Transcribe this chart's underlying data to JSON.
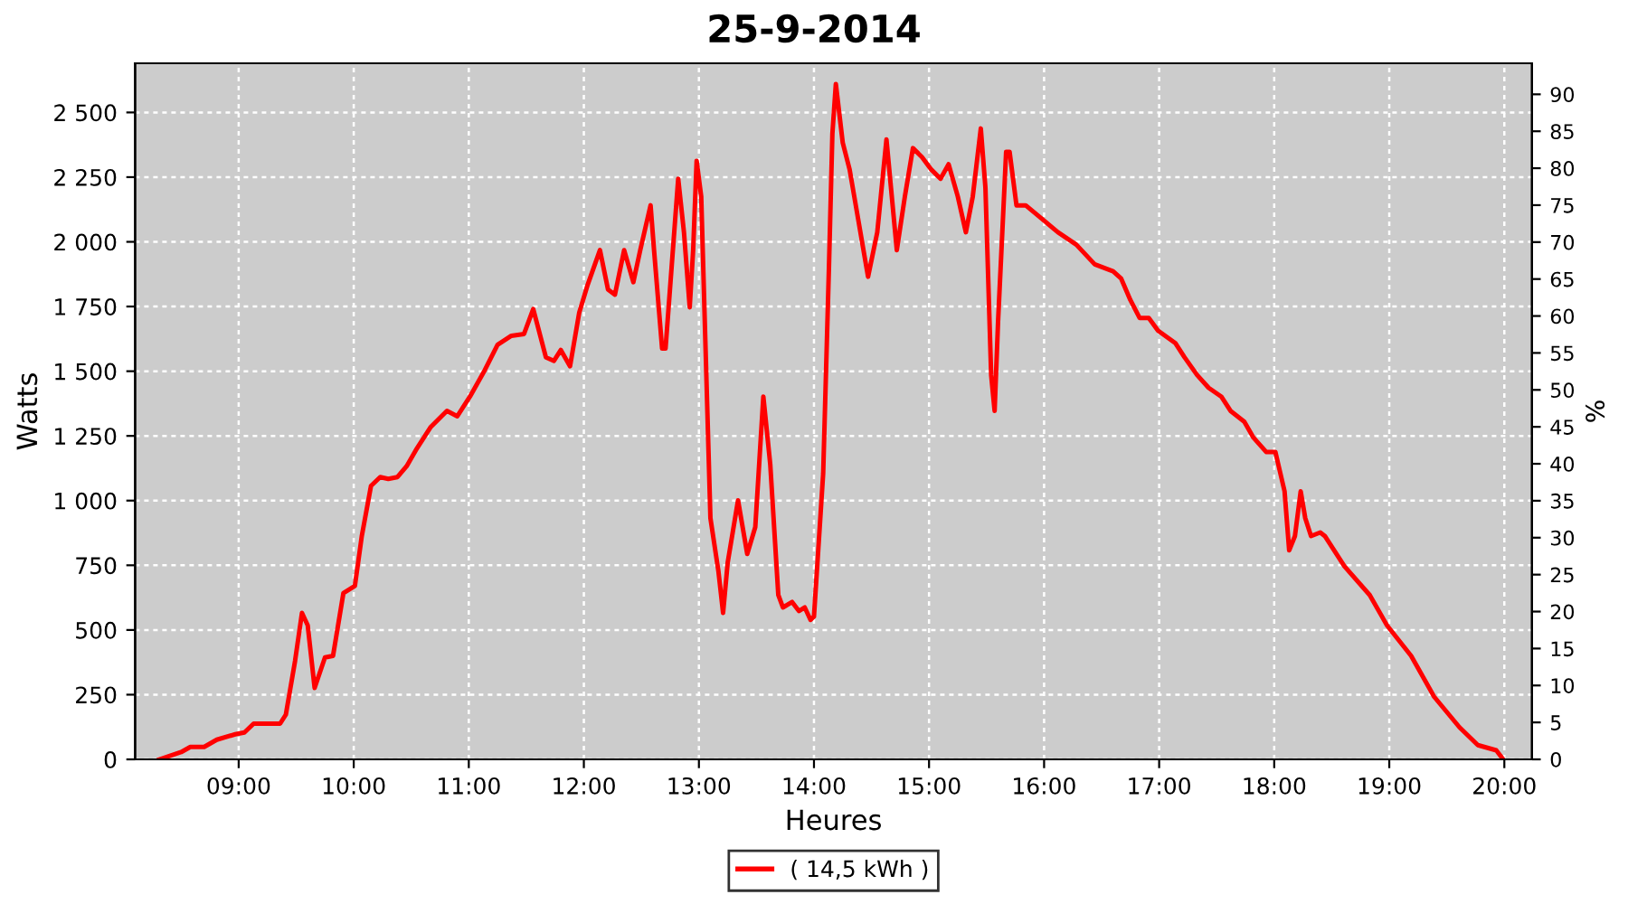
{
  "chart_data": {
    "type": "line",
    "title": "25-9-2014",
    "xlabel": "Heures",
    "ylabel": "Watts",
    "y2label": "%",
    "xlim": [
      8.1,
      20.24
    ],
    "xticks": [
      {
        "value": 9,
        "label": "09:00"
      },
      {
        "value": 10,
        "label": "10:00"
      },
      {
        "value": 11,
        "label": "11:00"
      },
      {
        "value": 12,
        "label": "12:00"
      },
      {
        "value": 13,
        "label": "13:00"
      },
      {
        "value": 14,
        "label": "14:00"
      },
      {
        "value": 15,
        "label": "15:00"
      },
      {
        "value": 16,
        "label": "16:00"
      },
      {
        "value": 17,
        "label": "17:00"
      },
      {
        "value": 18,
        "label": "18:00"
      },
      {
        "value": 19,
        "label": "19:00"
      },
      {
        "value": 20,
        "label": "20:00"
      }
    ],
    "ylim": [
      0,
      2690
    ],
    "yticks": [
      0,
      250,
      500,
      750,
      {
        "value": 1000,
        "label": "1 000"
      },
      {
        "value": 1250,
        "label": "1 250"
      },
      {
        "value": 1500,
        "label": "1 500"
      },
      {
        "value": 1750,
        "label": "1 750"
      },
      {
        "value": 2000,
        "label": "2 000"
      },
      {
        "value": 2250,
        "label": "2 250"
      },
      {
        "value": 2500,
        "label": "2 500"
      }
    ],
    "y2lim": [
      0,
      94.2
    ],
    "y2ticks": [
      0,
      5,
      10,
      15,
      20,
      25,
      30,
      35,
      40,
      45,
      50,
      55,
      60,
      65,
      70,
      75,
      80,
      85,
      90
    ],
    "grid": true,
    "legend": "bottom",
    "marker": "none",
    "line_style": "solid",
    "series": [
      {
        "name": "( 14,5 kWh )",
        "color": "#ff0000",
        "x": [
          8.31,
          8.5,
          8.58,
          8.7,
          8.81,
          8.97,
          9.05,
          9.13,
          9.28,
          9.36,
          9.41,
          9.49,
          9.55,
          9.6,
          9.66,
          9.75,
          9.82,
          9.91,
          10.01,
          10.07,
          10.15,
          10.23,
          10.3,
          10.38,
          10.46,
          10.54,
          10.67,
          10.81,
          10.9,
          11.01,
          11.14,
          11.25,
          11.37,
          11.48,
          11.56,
          11.67,
          11.74,
          11.8,
          11.88,
          11.96,
          12.03,
          12.14,
          12.21,
          12.27,
          12.35,
          12.43,
          12.49,
          12.58,
          12.61,
          12.68,
          12.71,
          12.82,
          12.87,
          12.92,
          12.95,
          12.98,
          13.02,
          13.06,
          13.1,
          13.17,
          13.21,
          13.25,
          13.34,
          13.42,
          13.49,
          13.56,
          13.62,
          13.69,
          13.73,
          13.81,
          13.87,
          13.92,
          13.97,
          14.0,
          14.08,
          14.13,
          14.16,
          14.19,
          14.25,
          14.31,
          14.39,
          14.47,
          14.55,
          14.63,
          14.72,
          14.79,
          14.86,
          14.94,
          15.02,
          15.1,
          15.17,
          15.25,
          15.32,
          15.38,
          15.45,
          15.49,
          15.54,
          15.57,
          15.6,
          15.67,
          15.7,
          15.76,
          15.84,
          15.97,
          16.12,
          16.28,
          16.44,
          16.6,
          16.67,
          16.75,
          16.83,
          16.91,
          16.99,
          17.14,
          17.22,
          17.33,
          17.43,
          17.54,
          17.62,
          17.74,
          17.82,
          17.93,
          18.01,
          18.09,
          18.13,
          18.18,
          18.23,
          18.27,
          18.32,
          18.4,
          18.44,
          18.61,
          18.83,
          18.98,
          19.19,
          19.39,
          19.61,
          19.77,
          19.93,
          19.99
        ],
        "values": [
          0,
          28,
          48,
          48,
          76,
          97,
          104,
          138,
          138,
          138,
          173,
          380,
          566,
          518,
          276,
          394,
          400,
          642,
          670,
          863,
          1057,
          1091,
          1084,
          1091,
          1133,
          1195,
          1285,
          1347,
          1326,
          1402,
          1505,
          1602,
          1637,
          1644,
          1740,
          1554,
          1540,
          1582,
          1519,
          1727,
          1830,
          1968,
          1816,
          1796,
          1968,
          1844,
          1968,
          2141,
          1968,
          1588,
          1588,
          2244,
          2037,
          1747,
          1968,
          2313,
          2175,
          1554,
          932,
          725,
          566,
          760,
          1001,
          794,
          898,
          1402,
          1140,
          635,
          587,
          608,
          573,
          587,
          539,
          552,
          1105,
          1899,
          2417,
          2610,
          2383,
          2279,
          2072,
          1865,
          2037,
          2396,
          1968,
          2175,
          2362,
          2327,
          2279,
          2244,
          2300,
          2175,
          2037,
          2175,
          2438,
          2210,
          1485,
          1347,
          1692,
          2348,
          2348,
          2141,
          2141,
          2093,
          2037,
          1989,
          1913,
          1886,
          1858,
          1775,
          1706,
          1706,
          1657,
          1609,
          1554,
          1485,
          1436,
          1402,
          1347,
          1305,
          1243,
          1188,
          1188,
          1036,
          808,
          863,
          1036,
          932,
          863,
          877,
          863,
          746,
          635,
          518,
          400,
          242,
          124,
          55,
          35,
          0
        ]
      }
    ]
  }
}
